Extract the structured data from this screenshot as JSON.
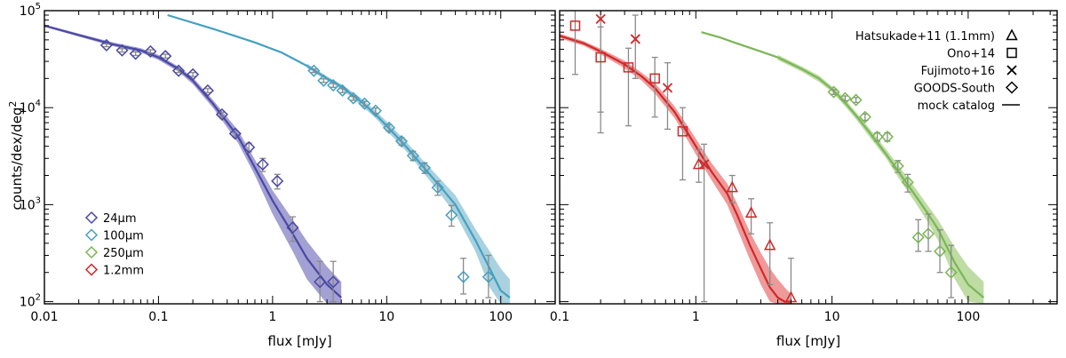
{
  "chart_data": [
    {
      "type": "line",
      "panel": "left",
      "xscale": "log",
      "yscale": "log",
      "xlim": [
        0.01,
        300
      ],
      "ylim": [
        95,
        100000
      ],
      "xlabel": "flux [mJy]",
      "ylabel_main": "counts/dex/deg",
      "ylabel_sup": "2",
      "xticks": [
        0.01,
        0.1,
        1,
        10,
        100
      ],
      "xtick_labels": [
        "0.01",
        "0.1",
        "1",
        "10",
        "100"
      ],
      "yticks": [
        100,
        1000,
        10000,
        100000
      ],
      "ytick_base": "10",
      "ytick_exps": [
        "2",
        "3",
        "4",
        "5"
      ],
      "legend": {
        "placement": "bottom-left",
        "entries": [
          {
            "label": "24μm",
            "color": "#4a48a4"
          },
          {
            "label": "100μm",
            "color": "#46a0c0"
          },
          {
            "label": "250μm",
            "color": "#7ab656"
          },
          {
            "label": "1.2mm",
            "color": "#d02828"
          }
        ]
      },
      "series": [
        {
          "name": "24μm",
          "color": "#4a48a4",
          "band_color": "#8480c4",
          "model": {
            "x": [
              0.01,
              0.02,
              0.04,
              0.07,
              0.1,
              0.15,
              0.2,
              0.3,
              0.5,
              0.7,
              1,
              1.5,
              2,
              3,
              4
            ],
            "y": [
              70000,
              56000,
              45000,
              39000,
              33000,
              25000,
              19000,
              11000,
              5000,
              2400,
              1100,
              500,
              280,
              150,
              110
            ],
            "lower": [
              68000,
              54000,
              43000,
              37000,
              31000,
              23500,
              17500,
              10000,
              4300,
              2000,
              800,
              330,
              170,
              95,
              95
            ],
            "upper": [
              72000,
              58000,
              47000,
              41000,
              35000,
              26500,
              20500,
              12000,
              5800,
              2900,
              1400,
              700,
              420,
              230,
              160
            ]
          },
          "obs": [
            {
              "x": 0.035,
              "y": 44000,
              "lo": 42500,
              "hi": 45500
            },
            {
              "x": 0.048,
              "y": 39000,
              "lo": 37500,
              "hi": 40500
            },
            {
              "x": 0.063,
              "y": 36000,
              "lo": 34500,
              "hi": 37500
            },
            {
              "x": 0.085,
              "y": 38000,
              "lo": 36500,
              "hi": 39500
            },
            {
              "x": 0.115,
              "y": 34000,
              "lo": 32500,
              "hi": 35500
            },
            {
              "x": 0.15,
              "y": 24000,
              "lo": 23000,
              "hi": 25000
            },
            {
              "x": 0.2,
              "y": 22000,
              "lo": 21000,
              "hi": 23000
            },
            {
              "x": 0.27,
              "y": 15000,
              "lo": 14300,
              "hi": 15700
            },
            {
              "x": 0.36,
              "y": 8500,
              "lo": 8000,
              "hi": 9000
            },
            {
              "x": 0.47,
              "y": 5400,
              "lo": 5000,
              "hi": 5800
            },
            {
              "x": 0.62,
              "y": 3900,
              "lo": 3500,
              "hi": 4300
            },
            {
              "x": 0.82,
              "y": 2600,
              "lo": 2200,
              "hi": 3000
            },
            {
              "x": 1.1,
              "y": 1750,
              "lo": 1450,
              "hi": 2050
            },
            {
              "x": 1.5,
              "y": 580,
              "lo": 420,
              "hi": 750
            },
            {
              "x": 2.6,
              "y": 160,
              "lo": 100,
              "hi": 260
            },
            {
              "x": 3.4,
              "y": 160,
              "lo": 100,
              "hi": 260
            }
          ]
        },
        {
          "name": "100μm",
          "color": "#46a0c0",
          "band_color": "#8cc2d4",
          "model": {
            "x": [
              0.12,
              0.3,
              0.7,
              1.2,
              2,
              3,
              4,
              6,
              8,
              10,
              15,
              20,
              30,
              40,
              60,
              80,
              100,
              120
            ],
            "y": [
              90000,
              65000,
              47000,
              37000,
              27000,
              20000,
              16500,
              11500,
              8500,
              6500,
              3900,
              2600,
              1500,
              1000,
              430,
              220,
              130,
              110
            ],
            "lower": [
              null,
              null,
              null,
              null,
              25500,
              19000,
              15500,
              10500,
              7800,
              5800,
              3500,
              2300,
              1250,
              800,
              330,
              140,
              95,
              95
            ],
            "upper": [
              null,
              null,
              null,
              null,
              28500,
              21000,
              17500,
              12500,
              9300,
              7200,
              4400,
              3000,
              1800,
              1250,
              560,
              330,
              220,
              170
            ]
          },
          "obs": [
            {
              "x": 2.3,
              "y": 24000,
              "lo": 23000,
              "hi": 25000
            },
            {
              "x": 2.8,
              "y": 19000,
              "lo": 18200,
              "hi": 19800
            },
            {
              "x": 3.4,
              "y": 17000,
              "lo": 16200,
              "hi": 17800
            },
            {
              "x": 4.1,
              "y": 15000,
              "lo": 14300,
              "hi": 15700
            },
            {
              "x": 5.1,
              "y": 12500,
              "lo": 11900,
              "hi": 13100
            },
            {
              "x": 6.4,
              "y": 11000,
              "lo": 10400,
              "hi": 11600
            },
            {
              "x": 8.0,
              "y": 9300,
              "lo": 8700,
              "hi": 9900
            },
            {
              "x": 10.5,
              "y": 6200,
              "lo": 5700,
              "hi": 6700
            },
            {
              "x": 13.5,
              "y": 4500,
              "lo": 4100,
              "hi": 4900
            },
            {
              "x": 17,
              "y": 3200,
              "lo": 2850,
              "hi": 3550
            },
            {
              "x": 21.5,
              "y": 2400,
              "lo": 2100,
              "hi": 2700
            },
            {
              "x": 28,
              "y": 1500,
              "lo": 1250,
              "hi": 1750
            },
            {
              "x": 37,
              "y": 780,
              "lo": 600,
              "hi": 980
            },
            {
              "x": 47,
              "y": 180,
              "lo": 120,
              "hi": 280
            },
            {
              "x": 78,
              "y": 180,
              "lo": 110,
              "hi": 300
            }
          ]
        }
      ]
    },
    {
      "type": "line",
      "panel": "right",
      "xscale": "log",
      "yscale": "log",
      "xlim": [
        0.1,
        450
      ],
      "ylim": [
        95,
        100000
      ],
      "xlabel": "flux [mJy]",
      "xticks": [
        0.1,
        1,
        10,
        100
      ],
      "xtick_labels": [
        "0.1",
        "1",
        "10",
        "100"
      ],
      "legend": {
        "placement": "top-right",
        "entries": [
          {
            "label": "Hatsukade+11 (1.1mm)",
            "marker": "triangle"
          },
          {
            "label": "Ono+14",
            "marker": "square"
          },
          {
            "label": "Fujimoto+16",
            "marker": "cross"
          },
          {
            "label": "GOODS-South",
            "marker": "diamond"
          },
          {
            "label": "mock catalog",
            "marker": "line"
          }
        ]
      },
      "series": [
        {
          "name": "1.2mm",
          "color": "#d02828",
          "band_color": "#e87878",
          "model": {
            "x": [
              0.1,
              0.15,
              0.2,
              0.3,
              0.4,
              0.5,
              0.7,
              1,
              1.3,
              1.7,
              2,
              2.5,
              3,
              3.5,
              4,
              4.5,
              5
            ],
            "y": [
              55000,
              46000,
              38000,
              28000,
              21000,
              16000,
              9000,
              4000,
              2200,
              1300,
              800,
              380,
              220,
              140,
              110,
              100,
              100
            ],
            "lower": [
              52000,
              43500,
              35500,
              25500,
              19000,
              14000,
              7800,
              3300,
              1800,
              1000,
              580,
              270,
              150,
              100,
              95,
              95,
              95
            ],
            "upper": [
              58000,
              48500,
              40500,
              30500,
              23000,
              18000,
              10300,
              4800,
              2700,
              1650,
              1050,
              520,
              320,
              220,
              170,
              140,
              120
            ]
          },
          "obs_square": [
            {
              "x": 0.13,
              "y": 70000,
              "lo": 22000,
              "hi": 110000
            },
            {
              "x": 0.2,
              "y": 33000,
              "lo": 9000,
              "hi": 68000
            },
            {
              "x": 0.32,
              "y": 26000,
              "lo": 6500,
              "hi": 41000
            },
            {
              "x": 0.5,
              "y": 20000,
              "lo": 8000,
              "hi": 33000
            },
            {
              "x": 0.8,
              "y": 5700,
              "lo": 1800,
              "hi": 10000
            }
          ],
          "obs_cross": [
            {
              "x": 0.2,
              "y": 82000,
              "lo": 5500,
              "hi": 110000
            },
            {
              "x": 0.36,
              "y": 51000,
              "lo": 20000,
              "hi": 90000
            },
            {
              "x": 0.62,
              "y": 16000,
              "lo": 6000,
              "hi": 29000
            },
            {
              "x": 1.15,
              "y": 2600,
              "lo": 100,
              "hi": 4200
            }
          ],
          "obs_triangle": [
            {
              "x": 1.05,
              "y": 2600,
              "lo": 1700,
              "hi": 3700
            },
            {
              "x": 1.85,
              "y": 1500,
              "lo": 1050,
              "hi": 2000
            },
            {
              "x": 2.55,
              "y": 820,
              "lo": 500,
              "hi": 1150
            },
            {
              "x": 3.5,
              "y": 380,
              "lo": 150,
              "hi": 650
            },
            {
              "x": 5.0,
              "y": 110,
              "lo": 95,
              "hi": 280
            }
          ]
        },
        {
          "name": "250μm",
          "color": "#7ab656",
          "band_color": "#a8d086",
          "model": {
            "x": [
              1.1,
              1.5,
              2,
              3,
              4,
              6,
              8,
              10,
              12,
              15,
              20,
              25,
              30,
              40,
              50,
              60,
              80,
              100,
              130
            ],
            "y": [
              60000,
              53000,
              46000,
              38000,
              33000,
              25000,
              20000,
              15500,
              12000,
              8300,
              5000,
              3300,
              2300,
              1300,
              830,
              560,
              250,
              150,
              110
            ],
            "lower": [
              null,
              null,
              null,
              null,
              31000,
              23500,
              18500,
              14500,
              11000,
              7600,
              4500,
              3000,
              2000,
              1100,
              680,
              430,
              170,
              100,
              95
            ],
            "upper": [
              null,
              null,
              null,
              null,
              35000,
              26500,
              21500,
              16500,
              13000,
              9000,
              5500,
              3700,
              2650,
              1550,
              1000,
              700,
              360,
              230,
              160
            ]
          },
          "obs": [
            {
              "x": 10.3,
              "y": 14500,
              "lo": 13700,
              "hi": 15300
            },
            {
              "x": 12.5,
              "y": 12500,
              "lo": 11800,
              "hi": 13200
            },
            {
              "x": 15,
              "y": 12000,
              "lo": 11300,
              "hi": 12700
            },
            {
              "x": 17.5,
              "y": 8000,
              "lo": 7400,
              "hi": 8600
            },
            {
              "x": 21.5,
              "y": 5000,
              "lo": 4500,
              "hi": 5500
            },
            {
              "x": 25.5,
              "y": 5000,
              "lo": 4500,
              "hi": 5500
            },
            {
              "x": 30.5,
              "y": 2500,
              "lo": 2150,
              "hi": 2850
            },
            {
              "x": 36,
              "y": 1700,
              "lo": 1350,
              "hi": 2050
            },
            {
              "x": 43,
              "y": 460,
              "lo": 330,
              "hi": 700
            },
            {
              "x": 51,
              "y": 500,
              "lo": 330,
              "hi": 800
            },
            {
              "x": 62,
              "y": 330,
              "lo": 200,
              "hi": 550
            },
            {
              "x": 75,
              "y": 200,
              "lo": 110,
              "hi": 380
            }
          ]
        }
      ]
    }
  ]
}
